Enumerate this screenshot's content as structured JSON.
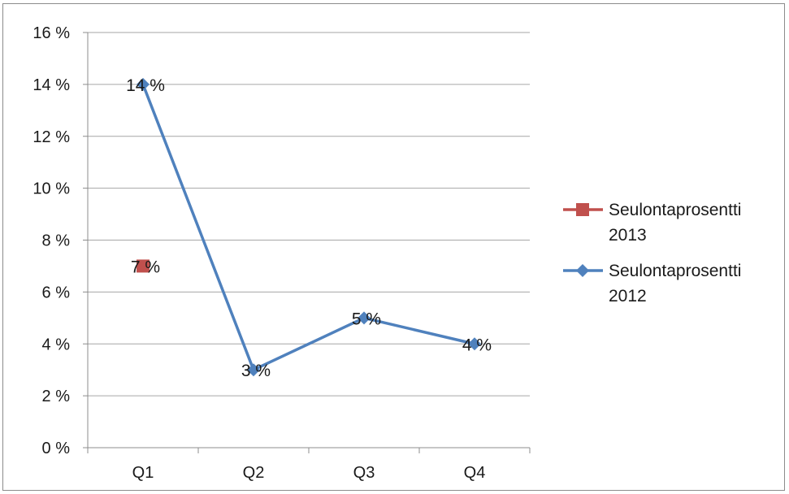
{
  "chart_data": {
    "type": "line",
    "categories": [
      "Q1",
      "Q2",
      "Q3",
      "Q4"
    ],
    "ylim": [
      0,
      16
    ],
    "y_ticks": [
      0,
      2,
      4,
      6,
      8,
      10,
      12,
      14,
      16
    ],
    "y_tick_labels": [
      "0 %",
      "2 %",
      "4 %",
      "6 %",
      "8 %",
      "10 %",
      "12 %",
      "14 %",
      "16 %"
    ],
    "grid": true,
    "legend_position": "right",
    "series": [
      {
        "name": "Seulontaprosentti 2013",
        "legend_lines": [
          "Seulontaprosentti",
          "2013"
        ],
        "color": "#c0504d",
        "marker": "square",
        "values": [
          7,
          null,
          null,
          null
        ],
        "data_labels": [
          "7 %",
          null,
          null,
          null
        ]
      },
      {
        "name": "Seulontaprosentti 2012",
        "legend_lines": [
          "Seulontaprosentti",
          "2012"
        ],
        "color": "#4f81bd",
        "marker": "diamond",
        "values": [
          14,
          3,
          5,
          4
        ],
        "data_labels": [
          "14 %",
          "3 %",
          "5 %",
          "4 %"
        ]
      }
    ]
  }
}
